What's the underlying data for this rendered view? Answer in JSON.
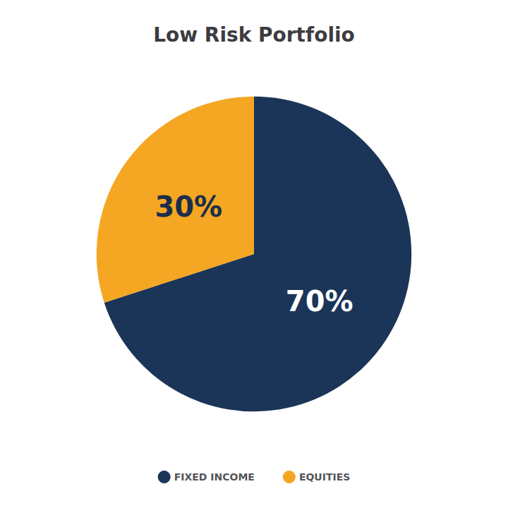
{
  "chart_data": {
    "type": "pie",
    "title": "Low Risk Portfolio",
    "categories": [
      "FIXED INCOME",
      "EQUITIES"
    ],
    "values": [
      70,
      30
    ],
    "value_labels": [
      "70%",
      "30%"
    ],
    "colors": [
      "#1a3558",
      "#f5a623"
    ],
    "data_labels": true,
    "legend": "bottom"
  }
}
